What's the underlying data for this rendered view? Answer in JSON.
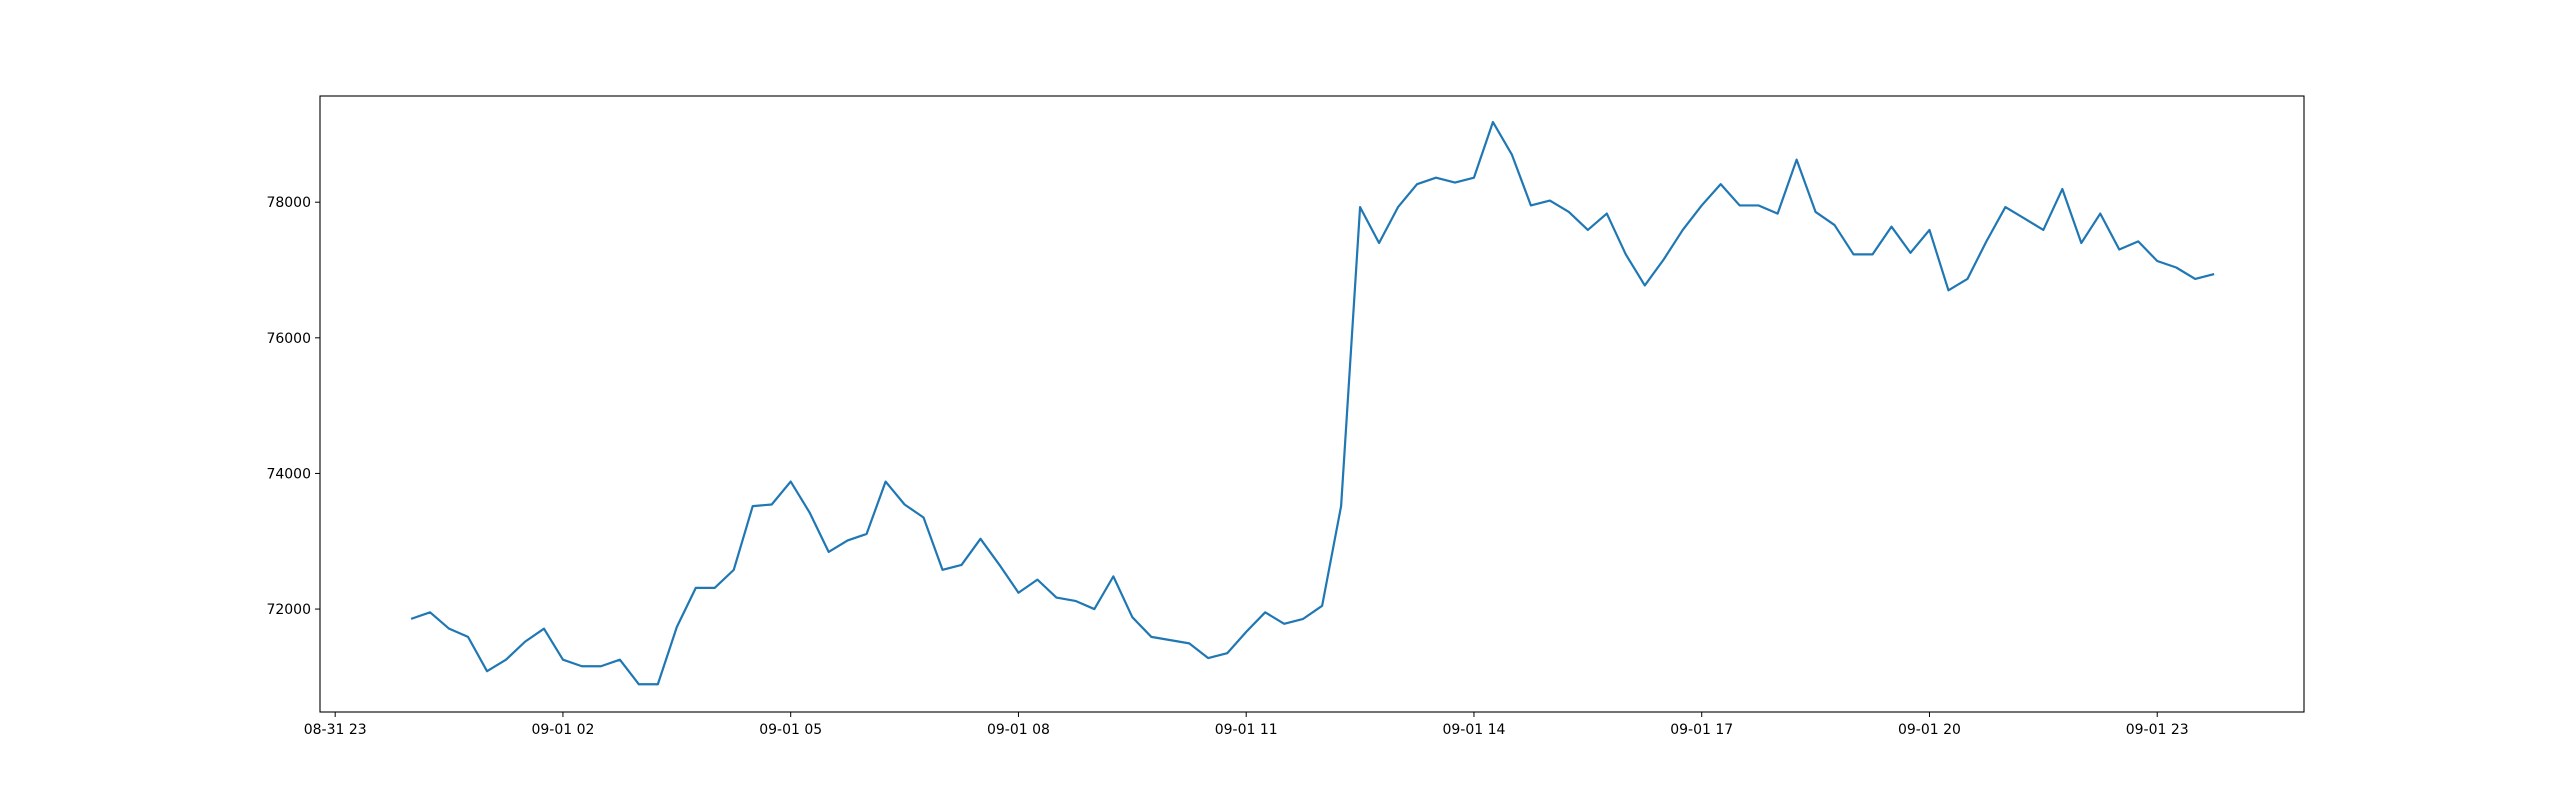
{
  "chart_data": {
    "type": "line",
    "x": [
      "09-01 00:00",
      "09-01 00:15",
      "09-01 00:30",
      "09-01 00:45",
      "09-01 01:00",
      "09-01 01:15",
      "09-01 01:30",
      "09-01 01:45",
      "09-01 02:00",
      "09-01 02:15",
      "09-01 02:30",
      "09-01 02:45",
      "09-01 03:00",
      "09-01 03:15",
      "09-01 03:30",
      "09-01 03:45",
      "09-01 04:00",
      "09-01 04:15",
      "09-01 04:30",
      "09-01 04:45",
      "09-01 05:00",
      "09-01 05:15",
      "09-01 05:30",
      "09-01 05:45",
      "09-01 06:00",
      "09-01 06:15",
      "09-01 06:30",
      "09-01 06:45",
      "09-01 07:00",
      "09-01 07:15",
      "09-01 07:30",
      "09-01 07:45",
      "09-01 08:00",
      "09-01 08:15",
      "09-01 08:30",
      "09-01 08:45",
      "09-01 09:00",
      "09-01 09:15",
      "09-01 09:30",
      "09-01 09:45",
      "09-01 10:00",
      "09-01 10:15",
      "09-01 10:30",
      "09-01 10:45",
      "09-01 11:00",
      "09-01 11:15",
      "09-01 11:30",
      "09-01 11:45",
      "09-01 12:00",
      "09-01 12:15",
      "09-01 12:30",
      "09-01 12:45",
      "09-01 13:00",
      "09-01 13:15",
      "09-01 13:30",
      "09-01 13:45",
      "09-01 14:00",
      "09-01 14:15",
      "09-01 14:30",
      "09-01 14:45",
      "09-01 15:00",
      "09-01 15:15",
      "09-01 15:30",
      "09-01 15:45",
      "09-01 16:00",
      "09-01 16:15",
      "09-01 16:30",
      "09-01 16:45",
      "09-01 17:00",
      "09-01 17:15",
      "09-01 17:30",
      "09-01 17:45",
      "09-01 18:00",
      "09-01 18:15",
      "09-01 18:30",
      "09-01 18:45",
      "09-01 19:00",
      "09-01 19:15",
      "09-01 19:30",
      "09-01 19:45",
      "09-01 20:00",
      "09-01 20:15",
      "09-01 20:30",
      "09-01 20:45",
      "09-01 21:00",
      "09-01 21:15",
      "09-01 21:30",
      "09-01 21:45",
      "09-01 22:00",
      "09-01 22:15",
      "09-01 22:30",
      "09-01 22:45",
      "09-01 23:00",
      "09-01 23:15",
      "09-01 23:30",
      "09-01 23:45"
    ],
    "series": [
      {
        "color": "#1f77b4",
        "values": [
          71855,
          71952,
          71711,
          71590,
          71084,
          71253,
          71518,
          71711,
          71253,
          71157,
          71157,
          71253,
          70891,
          70891,
          71735,
          72313,
          72313,
          72578,
          73518,
          73542,
          73880,
          73422,
          72843,
          73012,
          73108,
          73880,
          73542,
          73350,
          72578,
          72651,
          73036,
          72651,
          72241,
          72434,
          72169,
          72120,
          72000,
          72482,
          71880,
          71590,
          71542,
          71494,
          71277,
          71349,
          71663,
          71952,
          71783,
          71855,
          72048,
          73518,
          77928,
          77398,
          77928,
          78266,
          78362,
          78290,
          78362,
          79182,
          78700,
          77952,
          78024,
          77856,
          77591,
          77832,
          77230,
          76772,
          77157,
          77591,
          77952,
          78266,
          77952,
          77952,
          77832,
          78627,
          77856,
          77663,
          77230,
          77230,
          77639,
          77253,
          77591,
          76700,
          76868,
          77422,
          77928,
          77760,
          77591,
          78194,
          77398,
          77832,
          77302,
          77422,
          77133,
          77037,
          76868,
          76941
        ]
      }
    ],
    "xlim": [
      "08-31 22:48",
      "09-02 00:56"
    ],
    "xticks": [
      "08-31 23",
      "09-01 02",
      "09-01 05",
      "09-01 08",
      "09-01 11",
      "09-01 14",
      "09-01 17",
      "09-01 20",
      "09-01 23"
    ],
    "ylim": [
      70482,
      79566
    ],
    "yticks": [
      72000,
      74000,
      76000,
      78000
    ]
  }
}
